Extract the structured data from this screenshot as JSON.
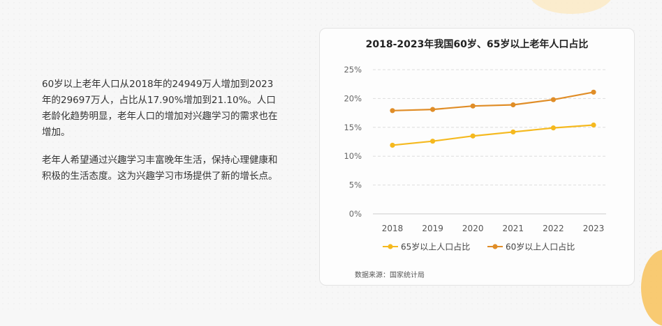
{
  "text": {
    "paragraph1": "60岁以上老年人口从2018年的24949万人增加到2023年的29697万人，占比从17.90%增加到21.10%。人口老龄化趋势明显，老年人口的增加对兴趣学习的需求也在增加。",
    "paragraph2": "老年人希望通过兴趣学习丰富晚年生活，保持心理健康和积极的生活态度。这为兴趣学习市场提供了新的增长点。"
  },
  "source": "数据来源：国家统计局",
  "colors": {
    "series_65": "#f5b91f",
    "series_60": "#e08d27",
    "grid": "#dddddd",
    "axis": "#cccccc"
  },
  "chart_data": {
    "type": "line",
    "title": "2018-2023年我国60岁、65岁以上老年人口占比",
    "xlabel": "",
    "ylabel": "",
    "x": [
      "2018",
      "2019",
      "2020",
      "2021",
      "2022",
      "2023"
    ],
    "ylim": [
      0,
      25
    ],
    "yticks": [
      "0%",
      "5%",
      "10%",
      "15%",
      "20%",
      "25%"
    ],
    "grid": true,
    "legend_position": "bottom",
    "series": [
      {
        "name": "65岁以上人口占比",
        "values": [
          11.9,
          12.6,
          13.5,
          14.2,
          14.9,
          15.4
        ]
      },
      {
        "name": "60岁以上人口占比",
        "values": [
          17.9,
          18.1,
          18.7,
          18.9,
          19.8,
          21.1
        ]
      }
    ]
  }
}
